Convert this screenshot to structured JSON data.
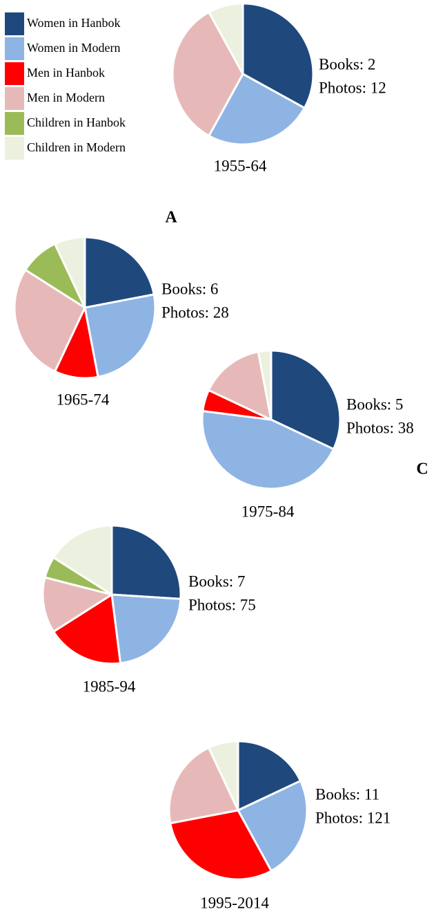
{
  "legend": {
    "categories": [
      "Women in Hanbok",
      "Women in Modern",
      "Men in Hanbok",
      "Men in Modern",
      "Children in Hanbok",
      "Children in Modern"
    ],
    "colors": [
      "#1f497d",
      "#8eb4e3",
      "#ff0000",
      "#e6b9b8",
      "#9bbb59",
      "#ebf1de"
    ]
  },
  "panel_labels": [
    "A",
    "C"
  ],
  "chart_data": [
    {
      "type": "pie",
      "title": "1955-64",
      "values": [
        33,
        25,
        0,
        34,
        0,
        8
      ],
      "annotations": [
        "Books: 2",
        "Photos: 12"
      ]
    },
    {
      "type": "pie",
      "title": "1965-74",
      "values": [
        22,
        25,
        10,
        27,
        9,
        7
      ],
      "annotations": [
        "Books: 6",
        "Photos: 28"
      ]
    },
    {
      "type": "pie",
      "title": "1975-84",
      "values": [
        32,
        45,
        5,
        15,
        0,
        3
      ],
      "annotations": [
        "Books: 5",
        "Photos: 38"
      ]
    },
    {
      "type": "pie",
      "title": "1985-94",
      "values": [
        26,
        22,
        18,
        13,
        5,
        16
      ],
      "annotations": [
        "Books: 7",
        "Photos: 75"
      ]
    },
    {
      "type": "pie",
      "title": "1995-2014",
      "values": [
        18,
        24,
        30,
        21,
        0,
        7
      ],
      "annotations": [
        "Books: 11",
        "Photos: 121"
      ]
    }
  ]
}
